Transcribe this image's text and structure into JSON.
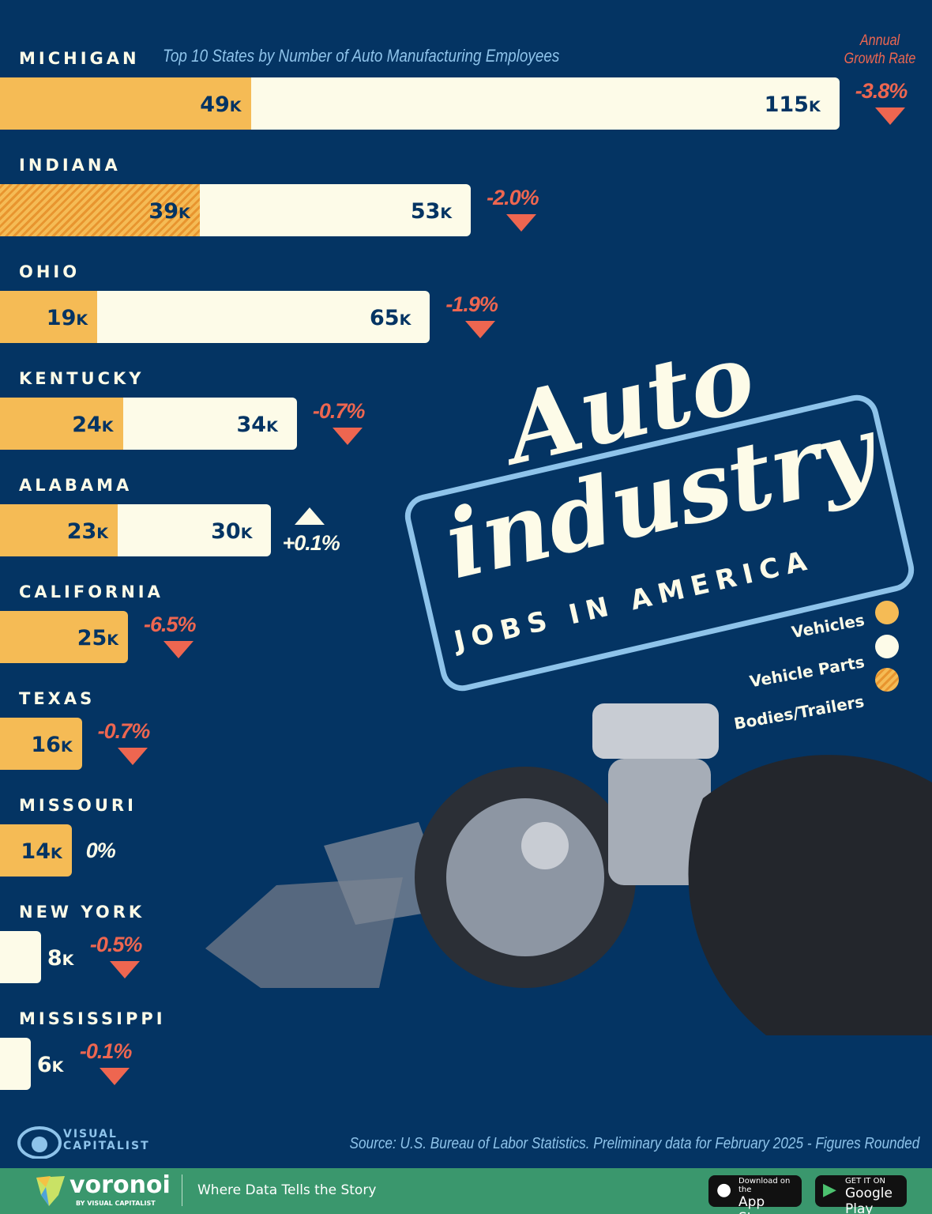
{
  "chart_data": {
    "type": "bar",
    "orientation": "horizontal",
    "stacked": true,
    "subtitle": "Top 10 States by Number of Auto Manufacturing Employees",
    "growth_header": "Annual Growth Rate",
    "unit_suffix": "K",
    "series": [
      {
        "name": "Vehicles",
        "color": "#f5bb55"
      },
      {
        "name": "Vehicle Parts",
        "color": "#fdfbe8"
      },
      {
        "name": "Bodies/Trailers",
        "color": "#f5bb55",
        "pattern": "hatched"
      }
    ],
    "categories": [
      "MICHIGAN",
      "INDIANA",
      "OHIO",
      "KENTUCKY",
      "ALABAMA",
      "CALIFORNIA",
      "TEXAS",
      "MISSOURI",
      "NEW YORK",
      "MISSISSIPPI"
    ],
    "rows": [
      {
        "state": "MICHIGAN",
        "vehicles": 49,
        "bodies_trailers": null,
        "parts": 115,
        "growth": "-3.8%",
        "growth_value": -3.8
      },
      {
        "state": "INDIANA",
        "vehicles": null,
        "bodies_trailers": 39,
        "parts": 53,
        "growth": "-2.0%",
        "growth_value": -2.0
      },
      {
        "state": "OHIO",
        "vehicles": 19,
        "bodies_trailers": null,
        "parts": 65,
        "growth": "-1.9%",
        "growth_value": -1.9
      },
      {
        "state": "KENTUCKY",
        "vehicles": 24,
        "bodies_trailers": null,
        "parts": 34,
        "growth": "-0.7%",
        "growth_value": -0.7
      },
      {
        "state": "ALABAMA",
        "vehicles": 23,
        "bodies_trailers": null,
        "parts": 30,
        "growth": "+0.1%",
        "growth_value": 0.1
      },
      {
        "state": "CALIFORNIA",
        "vehicles": 25,
        "bodies_trailers": null,
        "parts": null,
        "growth": "-6.5%",
        "growth_value": -6.5
      },
      {
        "state": "TEXAS",
        "vehicles": 16,
        "bodies_trailers": null,
        "parts": null,
        "growth": "-0.7%",
        "growth_value": -0.7
      },
      {
        "state": "MISSOURI",
        "vehicles": 14,
        "bodies_trailers": null,
        "parts": null,
        "growth": "0%",
        "growth_value": 0
      },
      {
        "state": "NEW YORK",
        "vehicles": null,
        "bodies_trailers": null,
        "parts": 8,
        "growth": "-0.5%",
        "growth_value": -0.5
      },
      {
        "state": "MISSISSIPPI",
        "vehicles": null,
        "bodies_trailers": null,
        "parts": 6,
        "growth": "-0.1%",
        "growth_value": -0.1
      }
    ]
  },
  "title": {
    "line1": "Auto",
    "line2": "industry",
    "line3": "JOBS IN AMERICA"
  },
  "legend": {
    "vehicles": "Vehicles",
    "parts": "Vehicle Parts",
    "bodies": "Bodies/Trailers"
  },
  "source": "Source: U.S. Bureau of Labor Statistics. Preliminary data for February 2025 - Figures Rounded",
  "brand": {
    "vc": "VISUAL CAPITALIST",
    "voronoi": "voronoi",
    "voronoi_sub": "BY VISUAL CAPITALIST",
    "tagline": "Where Data Tells the Story",
    "appstore_small": "Download on the",
    "appstore": "App Store",
    "googleplay_small": "GET IT ON",
    "googleplay": "Google Play"
  }
}
